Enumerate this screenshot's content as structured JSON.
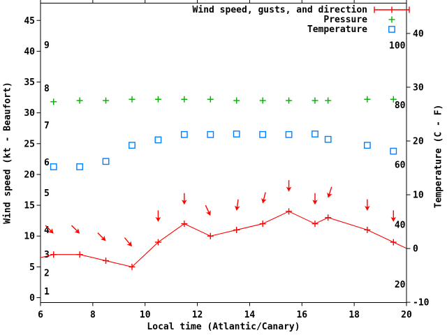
{
  "window": {
    "bg": "#ffffff",
    "fg": "#000000"
  },
  "chart_data": {
    "type": "line",
    "title": "",
    "xlabel": "Local time (Atlantic/Canary)",
    "ylabel": "Wind speed (kt - Beaufort)",
    "y2label": "Temperature (C - F)",
    "grid": false,
    "xlim": [
      6,
      20
    ],
    "ylim": [
      -0.8,
      47.8
    ],
    "y2lim": [
      -10.8,
      45.6
    ],
    "x_ticks": [
      6,
      8,
      10,
      12,
      14,
      16,
      18,
      20
    ],
    "y_ticks": [
      0,
      5,
      10,
      15,
      20,
      25,
      30,
      35,
      40,
      45
    ],
    "y2_ticks": [
      -10,
      0,
      10,
      20,
      30,
      40
    ],
    "beaufort_labels": {
      "values": [
        1,
        2,
        3,
        4,
        5,
        6,
        7,
        8,
        9
      ],
      "kt": [
        1,
        4,
        7,
        11,
        17,
        22,
        28,
        34,
        41
      ]
    },
    "fahrenheit_labels": {
      "values": [
        20,
        40,
        60,
        80,
        100
      ]
    },
    "legend": {
      "position": "top-right-inside",
      "entries": [
        {
          "label": "Wind speed, gusts, and direction",
          "marker": "errorbar-line-with-plus",
          "color": "#ff0000"
        },
        {
          "label": "Pressure",
          "marker": "plus",
          "color": "#00b000"
        },
        {
          "label": "Temperature",
          "marker": "open-square",
          "color": "#0080ff"
        }
      ]
    },
    "x": [
      6.5,
      7.5,
      8.5,
      9.5,
      10.5,
      11.5,
      12.5,
      13.5,
      14.5,
      15.5,
      16.5,
      17,
      18.5,
      19.5
    ],
    "series": [
      {
        "name": "Wind speed, gusts, and direction",
        "axis": "y1",
        "style": "line+points",
        "marker": "plus",
        "color": "#ff0000",
        "values": [
          7,
          7,
          6,
          5,
          9,
          12,
          10,
          11,
          12,
          14,
          12,
          13,
          11,
          9
        ],
        "edge_start": {
          "x": 6,
          "y": 6.5
        },
        "edge_end": {
          "x": 20,
          "y": 8
        },
        "gusts_kt": [
          10.4,
          10.4,
          9.2,
          8.3,
          12.3,
          15.1,
          13.3,
          14.1,
          15.3,
          17.2,
          15.1,
          16.2,
          14.1,
          12.3
        ],
        "gust_arrow_tilt_deg": [
          -45,
          -45,
          -45,
          -40,
          0,
          0,
          -25,
          8,
          14,
          0,
          0,
          18,
          0,
          0
        ]
      },
      {
        "name": "Pressure",
        "axis": "y1",
        "style": "points",
        "marker": "plus",
        "color": "#00b000",
        "values": [
          31.8,
          32,
          32,
          32.2,
          32.2,
          32.2,
          32.2,
          32,
          32,
          32,
          32,
          32,
          32.2,
          32.2
        ]
      },
      {
        "name": "Temperature",
        "axis": "y2",
        "style": "points",
        "marker": "open-square",
        "color": "#0080ff",
        "values": [
          15.2,
          15.2,
          16.2,
          19.2,
          20.2,
          21.2,
          21.2,
          21.3,
          21.2,
          21.2,
          21.3,
          20.3,
          19.2,
          18.1
        ]
      }
    ],
    "colors": {
      "wind": "#ff0000",
      "pressure": "#00b000",
      "temperature": "#0080ff",
      "axis": "#000000"
    }
  }
}
